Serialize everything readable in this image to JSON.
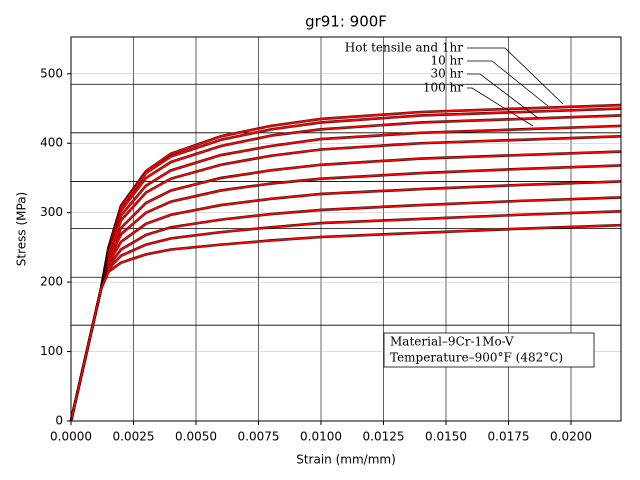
{
  "chart_data": {
    "type": "line",
    "title": "gr91: 900F",
    "x_label": "Strain (mm/mm)",
    "y_label": "Stress (MPa)",
    "x": [
      0,
      0.0012,
      0.0015,
      0.002,
      0.003,
      0.004,
      0.006,
      0.008,
      0.01,
      0.014,
      0.018,
      0.022
    ],
    "series": [
      {
        "color": "#ff0000",
        "values": [
          0,
          190,
          250,
          310,
          360,
          385,
          410,
          425,
          435,
          445,
          450,
          455
        ]
      },
      {
        "color": "#ff0000",
        "values": [
          0,
          190,
          249,
          308,
          357,
          381,
          405,
          420,
          430,
          440,
          445,
          450
        ]
      },
      {
        "color": "#ff0000",
        "values": [
          0,
          190,
          247,
          303,
          350,
          373,
          396,
          411,
          420,
          430,
          435,
          440
        ]
      },
      {
        "color": "#ff0000",
        "values": [
          0,
          190,
          244,
          296,
          339,
          361,
          383,
          396,
          406,
          415,
          420,
          425
        ]
      },
      {
        "color": "#ff0000",
        "values": [
          0,
          190,
          241,
          289,
          329,
          349,
          369,
          382,
          391,
          400,
          405,
          410
        ]
      },
      {
        "color": "#ff0000",
        "values": [
          0,
          190,
          236,
          278,
          314,
          332,
          350,
          361,
          369,
          378,
          383,
          388
        ]
      },
      {
        "color": "#ff0000",
        "values": [
          0,
          190,
          232,
          269,
          300,
          316,
          332,
          342,
          349,
          357,
          363,
          368
        ]
      },
      {
        "color": "#ff0000",
        "values": [
          0,
          190,
          228,
          258,
          284,
          297,
          311,
          320,
          327,
          334,
          340,
          345
        ]
      },
      {
        "color": "#ff0000",
        "values": [
          0,
          190,
          223,
          247,
          268,
          279,
          290,
          298,
          304,
          311,
          317,
          322
        ]
      },
      {
        "color": "#ff0000",
        "values": [
          0,
          190,
          219,
          238,
          254,
          263,
          272,
          279,
          285,
          291,
          297,
          302
        ]
      },
      {
        "color": "#ff0000",
        "values": [
          0,
          190,
          215,
          228,
          240,
          247,
          254,
          260,
          265,
          271,
          277,
          282
        ]
      }
    ],
    "xlim": [
      0,
      0.022
    ],
    "ylim": [
      0,
      553
    ],
    "xticks": [
      {
        "value": 0,
        "label": "0.0000"
      },
      {
        "value": 0.0025,
        "label": "0.0025"
      },
      {
        "value": 0.005,
        "label": "0.0050"
      },
      {
        "value": 0.0075,
        "label": "0.0075"
      },
      {
        "value": 0.01,
        "label": "0.0100"
      },
      {
        "value": 0.0125,
        "label": "0.0125"
      },
      {
        "value": 0.015,
        "label": "0.0150"
      },
      {
        "value": 0.0175,
        "label": "0.0175"
      },
      {
        "value": 0.02,
        "label": "0.0200"
      }
    ],
    "yticks": [
      0,
      100,
      200,
      300,
      400,
      500
    ],
    "reference_lines": [
      138,
      207,
      277,
      345,
      415,
      485
    ],
    "grid": true,
    "annotations": [
      "Hot tensile and 1hr",
      "10 hr",
      "30 hr",
      "100 hr"
    ],
    "note": [
      "Material–9Cr-1Mo-V",
      "Temperature–900°F (482°C)"
    ]
  }
}
